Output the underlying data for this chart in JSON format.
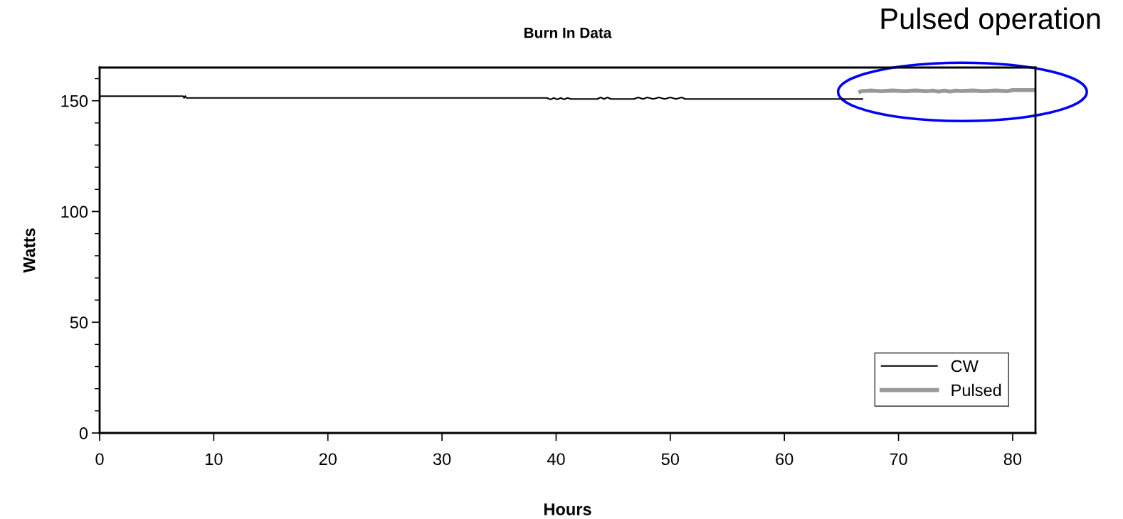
{
  "chart_data": {
    "type": "line",
    "title": "Burn In Data",
    "xlabel": "Hours",
    "ylabel": "Watts",
    "annotations": [
      {
        "text": "Pulsed operation",
        "x": 75.6,
        "y": 154
      }
    ],
    "series": [
      {
        "name": "CW",
        "color": "#000000",
        "x": [
          0,
          7.3,
          7.4,
          7.5,
          7.6,
          7.7,
          39.2,
          39.5,
          39.8,
          40.1,
          40.4,
          40.7,
          41.0,
          41.3,
          43.6,
          43.9,
          44.2,
          44.5,
          44.8,
          46.8,
          47.2,
          47.6,
          48.0,
          48.5,
          49.0,
          49.5,
          50.0,
          50.5,
          51.0,
          51.3,
          66.9
        ],
        "values": [
          152.1,
          152.1,
          151.3,
          152.1,
          151.3,
          151.3,
          151.3,
          150.6,
          151.3,
          150.6,
          151.3,
          150.6,
          151.3,
          150.8,
          150.8,
          151.5,
          150.8,
          151.5,
          150.8,
          150.8,
          151.5,
          150.8,
          151.5,
          150.8,
          151.5,
          150.8,
          151.5,
          150.8,
          151.5,
          150.8,
          150.8
        ]
      },
      {
        "name": "Pulsed",
        "color": "#999999",
        "x": [
          66.5,
          66.7,
          67.5,
          68.5,
          69.5,
          70.5,
          71.5,
          72.5,
          73.0,
          73.5,
          74.0,
          74.5,
          75.0,
          75.5,
          76.5,
          77.5,
          78.5,
          79.5,
          80.0,
          82.0
        ],
        "values": [
          153.6,
          154.3,
          154.6,
          154.3,
          154.6,
          154.3,
          154.6,
          154.3,
          154.6,
          154.2,
          154.6,
          154.2,
          154.6,
          154.4,
          154.6,
          154.3,
          154.6,
          154.3,
          154.8,
          154.8
        ]
      }
    ],
    "xlim": [
      0,
      82
    ],
    "xticks": [
      0,
      10,
      20,
      30,
      40,
      50,
      60,
      70,
      80
    ],
    "ylim": [
      0,
      165
    ],
    "yticks": [
      0,
      {
        "value": 10,
        "label": null
      },
      {
        "value": 20,
        "label": null
      },
      {
        "value": 30,
        "label": null
      },
      {
        "value": 40,
        "label": null
      },
      50,
      {
        "value": 60,
        "label": null
      },
      {
        "value": 70,
        "label": null
      },
      {
        "value": 80,
        "label": null
      },
      {
        "value": 90,
        "label": null
      },
      100,
      {
        "value": 110,
        "label": null
      },
      {
        "value": 120,
        "label": null
      },
      {
        "value": 130,
        "label": null
      },
      {
        "value": 140,
        "label": null
      },
      150,
      {
        "value": 160,
        "label": null
      }
    ],
    "grid": false,
    "legend": "bottom right",
    "marker": "none",
    "line_style": "solid"
  }
}
